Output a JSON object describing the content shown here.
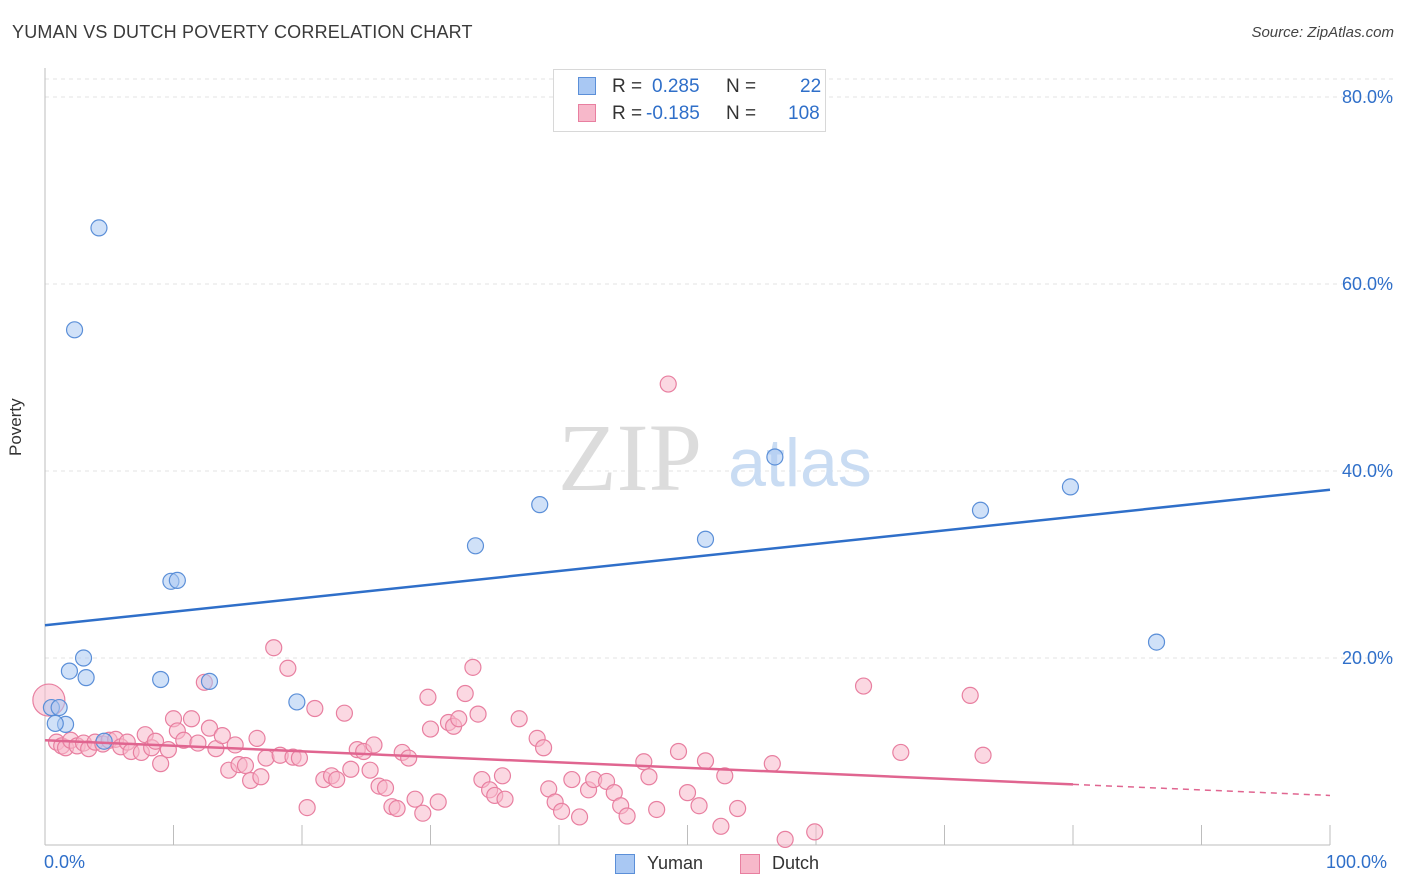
{
  "header": {
    "title": "YUMAN VS DUTCH POVERTY CORRELATION CHART",
    "source": "Source: ZipAtlas.com"
  },
  "watermark": {
    "zip": "ZIP",
    "atlas": "atlas"
  },
  "legend": {
    "r_label": "R =",
    "n_label": "N =",
    "series": [
      {
        "name": "Yuman",
        "r": "0.285",
        "n": "22"
      },
      {
        "name": "Dutch",
        "r": "-0.185",
        "n": "108"
      }
    ]
  },
  "colors": {
    "yuman_fill": "#a9c8f3",
    "yuman_stroke": "#5b8fd8",
    "yuman_line": "#2f6fc9",
    "dutch_fill": "#f7b8ca",
    "dutch_stroke": "#e87fa0",
    "dutch_line": "#e06590",
    "axis_text": "#2f6fc9",
    "grid": "#e3e3e3"
  },
  "chart_data": {
    "type": "scatter",
    "title": "YUMAN VS DUTCH POVERTY CORRELATION CHART",
    "xlabel": "",
    "ylabel": "Poverty",
    "xlim": [
      0,
      100
    ],
    "ylim": [
      0,
      80
    ],
    "y_ticks": [
      "20.0%",
      "40.0%",
      "60.0%",
      "80.0%"
    ],
    "y_tick_values": [
      20,
      40,
      60,
      80
    ],
    "x_tick_labels": [
      "0.0%",
      "100.0%"
    ],
    "x_tick_values": [
      0,
      100
    ],
    "grid": true,
    "legend_placement": "top-center",
    "series": [
      {
        "name": "Yuman",
        "trend": {
          "x": [
            0,
            100
          ],
          "y": [
            23.5,
            38.0
          ],
          "dashed_from": null
        },
        "points": [
          [
            0.5,
            14.7
          ],
          [
            1.1,
            14.7
          ],
          [
            1.6,
            12.9
          ],
          [
            1.9,
            18.6
          ],
          [
            2.3,
            55.1
          ],
          [
            3.0,
            20.0
          ],
          [
            3.2,
            17.9
          ],
          [
            4.2,
            66.0
          ],
          [
            4.6,
            11.1
          ],
          [
            9.0,
            17.7
          ],
          [
            9.8,
            28.2
          ],
          [
            10.3,
            28.3
          ],
          [
            12.8,
            17.5
          ],
          [
            19.6,
            15.3
          ],
          [
            33.5,
            32.0
          ],
          [
            38.5,
            36.4
          ],
          [
            51.4,
            32.7
          ],
          [
            56.8,
            41.5
          ],
          [
            72.8,
            35.8
          ],
          [
            79.8,
            38.3
          ],
          [
            86.5,
            21.7
          ],
          [
            0.8,
            13.0
          ]
        ]
      },
      {
        "name": "Dutch",
        "trend": {
          "x": [
            0,
            100
          ],
          "y": [
            11.2,
            5.3
          ],
          "dashed_from": 80
        },
        "points": [
          [
            0.3,
            15.5
          ],
          [
            0.9,
            11.0
          ],
          [
            1.3,
            10.6
          ],
          [
            1.6,
            10.4
          ],
          [
            2.0,
            11.2
          ],
          [
            2.5,
            10.6
          ],
          [
            3.0,
            10.9
          ],
          [
            3.4,
            10.3
          ],
          [
            3.9,
            11.0
          ],
          [
            4.5,
            10.8
          ],
          [
            5.0,
            11.2
          ],
          [
            5.5,
            11.3
          ],
          [
            5.9,
            10.5
          ],
          [
            6.4,
            11.0
          ],
          [
            6.7,
            10.0
          ],
          [
            7.5,
            9.9
          ],
          [
            7.8,
            11.8
          ],
          [
            8.3,
            10.4
          ],
          [
            8.6,
            11.1
          ],
          [
            9.0,
            8.7
          ],
          [
            9.6,
            10.2
          ],
          [
            10.0,
            13.5
          ],
          [
            10.3,
            12.2
          ],
          [
            10.8,
            11.2
          ],
          [
            11.4,
            13.5
          ],
          [
            11.9,
            10.9
          ],
          [
            12.4,
            17.4
          ],
          [
            12.8,
            12.5
          ],
          [
            13.3,
            10.3
          ],
          [
            13.8,
            11.7
          ],
          [
            14.3,
            8.0
          ],
          [
            14.8,
            10.7
          ],
          [
            15.1,
            8.6
          ],
          [
            15.6,
            8.5
          ],
          [
            16.0,
            6.9
          ],
          [
            16.5,
            11.4
          ],
          [
            16.8,
            7.3
          ],
          [
            17.2,
            9.3
          ],
          [
            17.8,
            21.1
          ],
          [
            18.3,
            9.6
          ],
          [
            18.9,
            18.9
          ],
          [
            19.3,
            9.4
          ],
          [
            19.8,
            9.3
          ],
          [
            20.4,
            4.0
          ],
          [
            21.0,
            14.6
          ],
          [
            21.7,
            7.0
          ],
          [
            22.3,
            7.4
          ],
          [
            22.7,
            7.0
          ],
          [
            23.3,
            14.1
          ],
          [
            23.8,
            8.1
          ],
          [
            24.3,
            10.2
          ],
          [
            24.8,
            10.0
          ],
          [
            25.3,
            8.0
          ],
          [
            25.6,
            10.7
          ],
          [
            26.0,
            6.3
          ],
          [
            26.5,
            6.1
          ],
          [
            27.0,
            4.1
          ],
          [
            27.4,
            3.9
          ],
          [
            27.8,
            9.9
          ],
          [
            28.3,
            9.3
          ],
          [
            28.8,
            4.9
          ],
          [
            29.4,
            3.4
          ],
          [
            29.8,
            15.8
          ],
          [
            30.0,
            12.4
          ],
          [
            30.6,
            4.6
          ],
          [
            31.4,
            13.1
          ],
          [
            31.8,
            12.7
          ],
          [
            32.2,
            13.5
          ],
          [
            32.7,
            16.2
          ],
          [
            33.3,
            19.0
          ],
          [
            33.7,
            14.0
          ],
          [
            34.0,
            7.0
          ],
          [
            34.6,
            5.9
          ],
          [
            35.0,
            5.3
          ],
          [
            35.6,
            7.4
          ],
          [
            35.8,
            4.9
          ],
          [
            36.9,
            13.5
          ],
          [
            38.3,
            11.4
          ],
          [
            38.8,
            10.4
          ],
          [
            39.2,
            6.0
          ],
          [
            39.7,
            4.6
          ],
          [
            40.2,
            3.6
          ],
          [
            41.0,
            7.0
          ],
          [
            41.6,
            3.0
          ],
          [
            42.3,
            5.9
          ],
          [
            42.7,
            7.0
          ],
          [
            43.7,
            6.8
          ],
          [
            44.3,
            5.6
          ],
          [
            44.8,
            4.2
          ],
          [
            45.3,
            3.1
          ],
          [
            46.6,
            8.9
          ],
          [
            47.0,
            7.3
          ],
          [
            47.6,
            3.8
          ],
          [
            48.5,
            49.3
          ],
          [
            49.3,
            10.0
          ],
          [
            50.0,
            5.6
          ],
          [
            50.9,
            4.2
          ],
          [
            51.4,
            9.0
          ],
          [
            52.6,
            2.0
          ],
          [
            52.9,
            7.4
          ],
          [
            53.9,
            3.9
          ],
          [
            56.6,
            8.7
          ],
          [
            57.6,
            0.6
          ],
          [
            59.9,
            1.4
          ],
          [
            63.7,
            17.0
          ],
          [
            66.6,
            9.9
          ],
          [
            72.0,
            16.0
          ],
          [
            73.0,
            9.6
          ]
        ]
      }
    ]
  }
}
